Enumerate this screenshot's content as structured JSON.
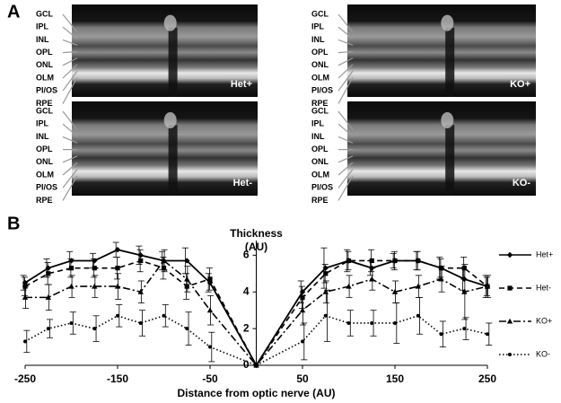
{
  "panel_a": {
    "label": "A",
    "layers": [
      "GCL",
      "IPL",
      "INL",
      "OPL",
      "ONL",
      "OLM",
      "PI/OS",
      "RPE"
    ],
    "images": [
      {
        "label": "Het+"
      },
      {
        "label": "KO+"
      },
      {
        "label": "Het-"
      },
      {
        "label": "KO-"
      }
    ]
  },
  "chart_data": {
    "type": "line",
    "panel_label": "B",
    "y_label": "Thickness",
    "y_label_unit": "(AU)",
    "x_label": "Distance from optic nerve (AU)",
    "x": [
      -250,
      -225,
      -200,
      -175,
      -150,
      -125,
      -100,
      -75,
      -50,
      0,
      50,
      75,
      100,
      125,
      150,
      175,
      200,
      225,
      250
    ],
    "xlim": [
      -250,
      250
    ],
    "xticks": [
      -250,
      -150,
      -50,
      50,
      150,
      250
    ],
    "ylim": [
      0,
      6.8
    ],
    "yticks": [
      0,
      2,
      4,
      6
    ],
    "legend": "right",
    "series": [
      {
        "name": "Het+",
        "color": "#000000",
        "style": "solid",
        "marker": "diamond",
        "values": [
          4.5,
          5.3,
          5.7,
          5.7,
          6.3,
          6.0,
          5.7,
          5.7,
          4.5,
          0,
          4.0,
          5.3,
          5.7,
          5.3,
          5.7,
          5.7,
          5.3,
          4.7,
          4.3
        ],
        "errors": [
          0.4,
          0.5,
          0.5,
          0.4,
          0.4,
          0.5,
          0.5,
          0.7,
          0.5,
          0,
          0.6,
          1.1,
          0.6,
          0.4,
          0.4,
          0.5,
          0.6,
          0.6,
          0.6
        ]
      },
      {
        "name": "Het-",
        "color": "#000000",
        "style": "dashed",
        "marker": "square",
        "values": [
          4.3,
          5.0,
          5.3,
          5.3,
          5.3,
          5.7,
          5.3,
          4.3,
          4.7,
          0,
          3.7,
          5.0,
          5.7,
          5.7,
          5.7,
          5.7,
          5.3,
          5.3,
          4.3
        ],
        "errors": [
          0.5,
          0.6,
          0.5,
          0.5,
          0.6,
          0.6,
          0.6,
          0.7,
          0.6,
          0,
          0.6,
          0.5,
          0.5,
          0.6,
          0.5,
          0.5,
          0.5,
          0.6,
          0.5
        ]
      },
      {
        "name": "KO+",
        "color": "#000000",
        "style": "dashdot",
        "marker": "triangle",
        "values": [
          3.7,
          3.7,
          4.3,
          4.3,
          4.3,
          4.0,
          5.7,
          4.7,
          3.0,
          0,
          3.0,
          4.0,
          4.3,
          4.7,
          4.0,
          4.3,
          4.7,
          4.0,
          4.3
        ],
        "errors": [
          0.6,
          0.7,
          0.6,
          0.6,
          0.7,
          0.6,
          0.6,
          0.7,
          0.8,
          0,
          0.8,
          0.6,
          0.6,
          0.6,
          0.6,
          0.6,
          0.7,
          1.5,
          0.6
        ]
      },
      {
        "name": "KO-",
        "color": "#000000",
        "style": "dotted",
        "marker": "circle",
        "values": [
          1.3,
          2.0,
          2.3,
          2.0,
          2.7,
          2.3,
          2.7,
          2.0,
          1.0,
          0,
          1.3,
          2.7,
          2.3,
          2.3,
          2.3,
          2.7,
          1.7,
          2.0,
          1.7
        ],
        "errors": [
          0.6,
          0.5,
          0.6,
          0.7,
          0.6,
          0.7,
          0.6,
          0.9,
          0.8,
          0,
          1.0,
          1.4,
          0.7,
          0.7,
          1.1,
          1.0,
          0.7,
          0.6,
          0.6
        ]
      }
    ]
  }
}
